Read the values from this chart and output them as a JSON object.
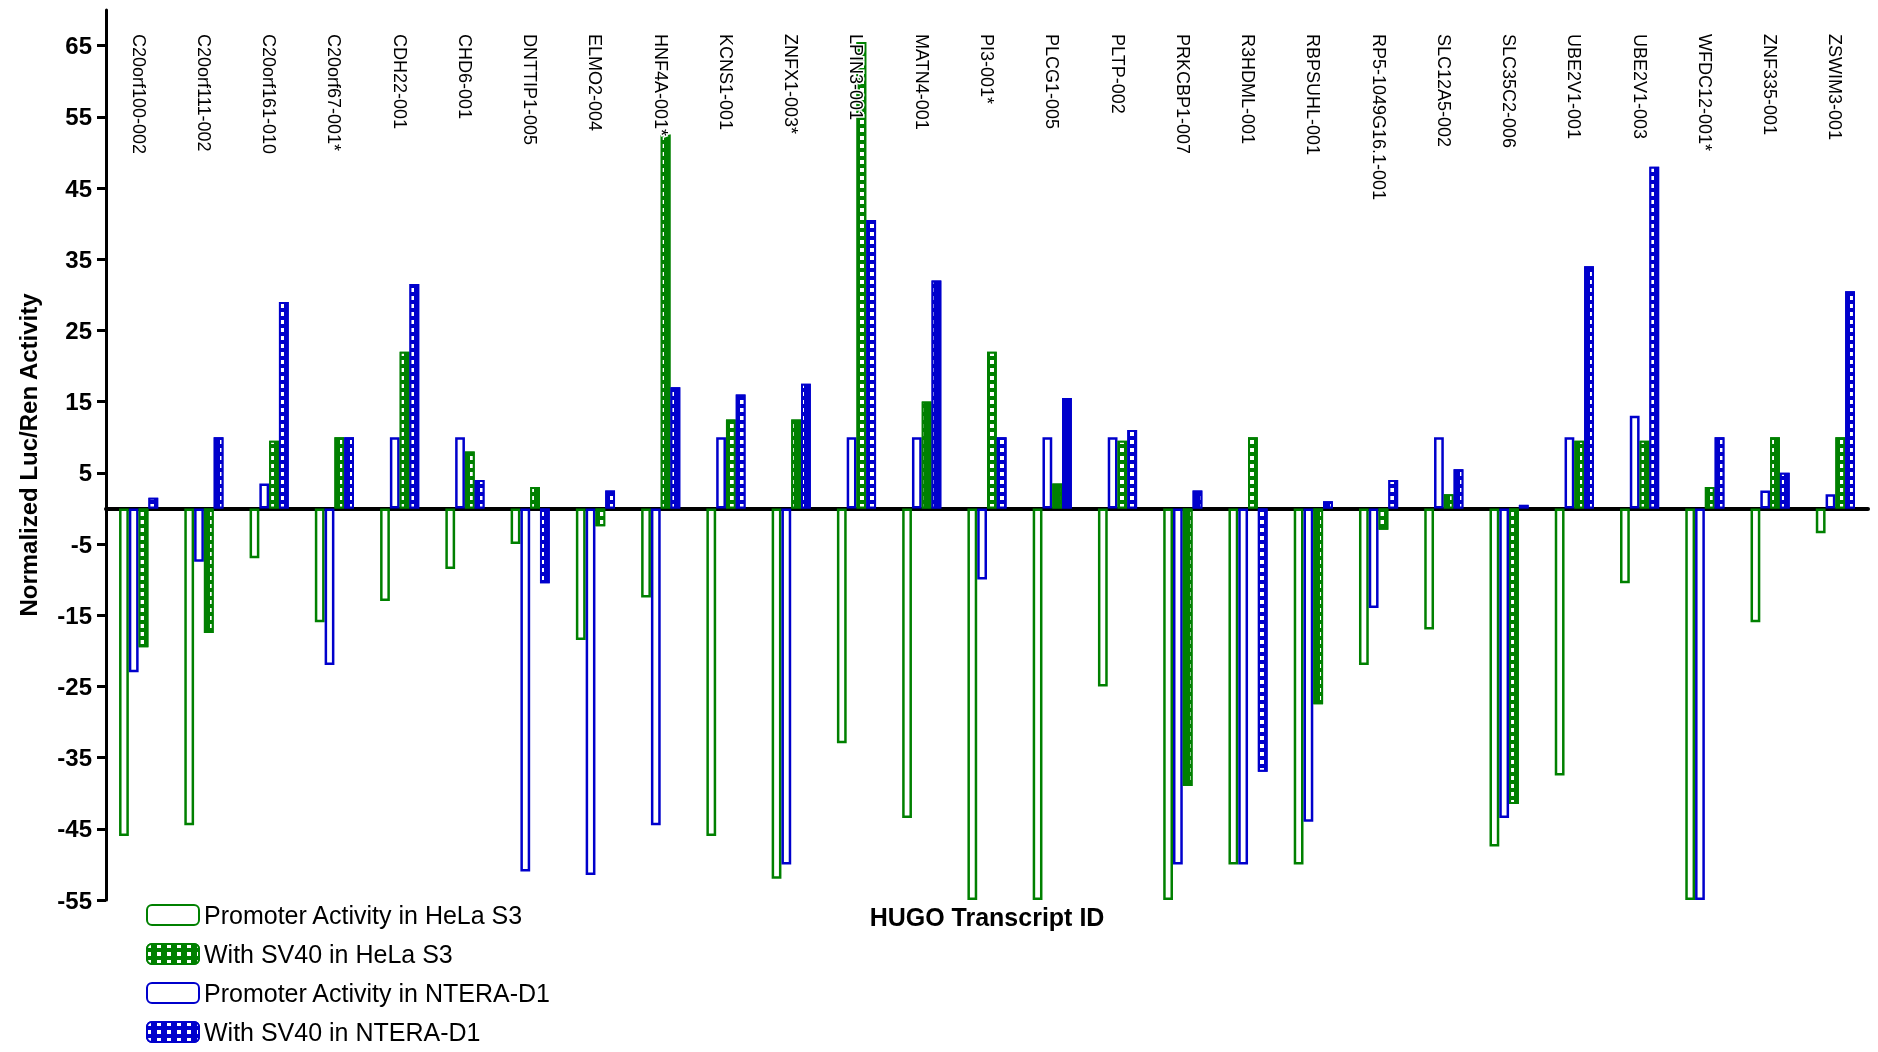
{
  "chart_data": {
    "type": "bar",
    "xlabel": "HUGO Transcript ID",
    "ylabel": "Normalized Luc/Ren Activity",
    "categories": [
      "C20orf100-002",
      "C20orf111-002",
      "C20orf161-010",
      "C20orf67-001*",
      "CDH22-001",
      "CHD6-001",
      "DNTTIP1-005",
      "ELMO2-004",
      "HNF4A-001*",
      "KCNS1-001",
      "ZNFX1-003*",
      "LPIN3-001",
      "MATN4-001",
      "PI3-001*",
      "PLCG1-005",
      "PLTP-002",
      "PRKCBP1-007",
      "R3HDML-001",
      "RBPSUHL-001",
      "RP5-1049G16.1-001",
      "SLC12A5-002",
      "SLC35C2-006",
      "UBE2V1-001",
      "UBE2V1-003",
      "WFDC12-001*",
      "ZNF335-001",
      "ZSWIM3-001"
    ],
    "series": [
      {
        "name": "Promoter Activity in HeLa S3",
        "color": "#008000",
        "values": [
          -46,
          -44.5,
          -7,
          -16,
          -13,
          -8.5,
          -5,
          -18.5,
          -12.5,
          -46,
          -52,
          -33,
          -43.5,
          -55,
          -55,
          -25,
          -55,
          -50,
          -50,
          -22,
          -17,
          -47.5,
          -37.5,
          -10.5,
          -55,
          -16,
          -3.5
        ]
      },
      {
        "name": "With SV40 in HeLa S3",
        "color": "#008000",
        "values": [
          -19.5,
          -17.5,
          9.5,
          10,
          22,
          8,
          3,
          -2.5,
          52.5,
          12.5,
          12.5,
          65.5,
          15,
          22,
          3.5,
          9.5,
          -39,
          10,
          -27.5,
          -3,
          2,
          -41.5,
          9.5,
          9.5,
          3,
          10,
          10
        ]
      },
      {
        "name": "Promoter Activity in NTERA-D1",
        "color": "#0000cc",
        "values": [
          -23,
          -7.5,
          3.5,
          -22,
          10,
          10,
          -51,
          -51.5,
          -44.5,
          10,
          -50,
          10,
          10,
          -10,
          10,
          10,
          -50,
          -50,
          -44,
          -14,
          10,
          -43.5,
          10,
          13,
          -55,
          2.5,
          2
        ]
      },
      {
        "name": "With SV40 in NTERA-D1",
        "color": "#0000cc",
        "values": [
          1.5,
          10,
          29,
          10,
          31.5,
          4,
          -10.5,
          2.5,
          17,
          16,
          17.5,
          40.5,
          32,
          10,
          15.5,
          11,
          2.5,
          -37,
          1,
          4,
          5.5,
          0.5,
          34,
          48,
          10,
          5,
          30.5
        ]
      }
    ],
    "ylim": [
      -55,
      70
    ],
    "yticks": [
      -55,
      -45,
      -35,
      -25,
      -15,
      -5,
      5,
      15,
      25,
      35,
      45,
      55,
      65
    ],
    "legend": "bottom left"
  }
}
